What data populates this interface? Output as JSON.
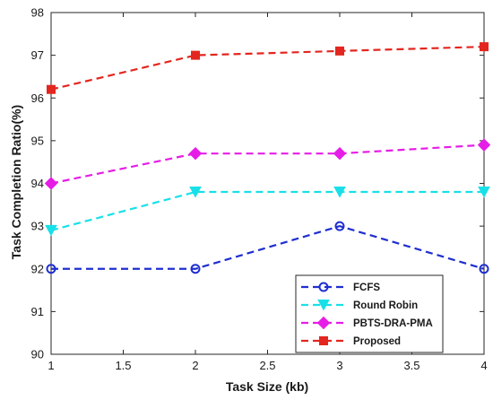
{
  "chart_data": {
    "type": "line",
    "xlabel": "Task Size (kb)",
    "ylabel": "Task Completion Ratio(%)",
    "x": [
      1,
      2,
      3,
      4
    ],
    "xlim": [
      1,
      4
    ],
    "ylim": [
      90,
      98
    ],
    "xticks": [
      "1",
      "1.5",
      "2",
      "2.5",
      "3",
      "3.5",
      "4"
    ],
    "yticks": [
      "90",
      "91",
      "92",
      "93",
      "94",
      "95",
      "96",
      "97",
      "98"
    ],
    "grid": false,
    "legend_position": "bottom-right",
    "series": [
      {
        "name": "FCFS",
        "values": [
          92.0,
          92.0,
          93.0,
          92.0
        ],
        "color": "#1f2fd0",
        "marker": "circle"
      },
      {
        "name": "Round Robin",
        "values": [
          92.9,
          93.8,
          93.8,
          93.8
        ],
        "color": "#19e0e8",
        "marker": "triangle-down"
      },
      {
        "name": "PBTS-DRA-PMA",
        "values": [
          94.0,
          94.7,
          94.7,
          94.9
        ],
        "color": "#e61de6",
        "marker": "diamond"
      },
      {
        "name": "Proposed",
        "values": [
          96.2,
          97.0,
          97.1,
          97.2
        ],
        "color": "#e3261f",
        "marker": "square"
      }
    ]
  }
}
